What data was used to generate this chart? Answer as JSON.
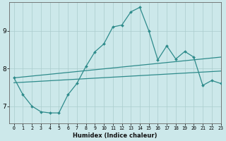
{
  "xlabel": "Humidex (Indice chaleur)",
  "bg_color": "#cce8ea",
  "grid_color": "#aacccc",
  "line_color": "#2e8b8b",
  "xlim": [
    -0.5,
    23
  ],
  "ylim": [
    6.55,
    9.75
  ],
  "yticks": [
    7,
    8,
    9
  ],
  "xticks": [
    0,
    1,
    2,
    3,
    4,
    5,
    6,
    7,
    8,
    9,
    10,
    11,
    12,
    13,
    14,
    15,
    16,
    17,
    18,
    19,
    20,
    21,
    22,
    23
  ],
  "trend1_x": [
    0,
    23
  ],
  "trend1_y": [
    7.62,
    7.93
  ],
  "trend2_x": [
    0,
    23
  ],
  "trend2_y": [
    7.75,
    8.3
  ],
  "curve_x": [
    0,
    1,
    2,
    3,
    4,
    5,
    6,
    7,
    8,
    9,
    10,
    11,
    12,
    13,
    14,
    15,
    16,
    17,
    18,
    19,
    20,
    21,
    22,
    23
  ],
  "curve_y": [
    7.75,
    7.3,
    7.0,
    6.85,
    6.82,
    6.82,
    7.3,
    7.6,
    8.05,
    8.44,
    8.65,
    9.1,
    9.15,
    9.5,
    9.62,
    9.0,
    8.23,
    8.6,
    8.25,
    8.45,
    8.3,
    7.55,
    7.68,
    7.6
  ]
}
